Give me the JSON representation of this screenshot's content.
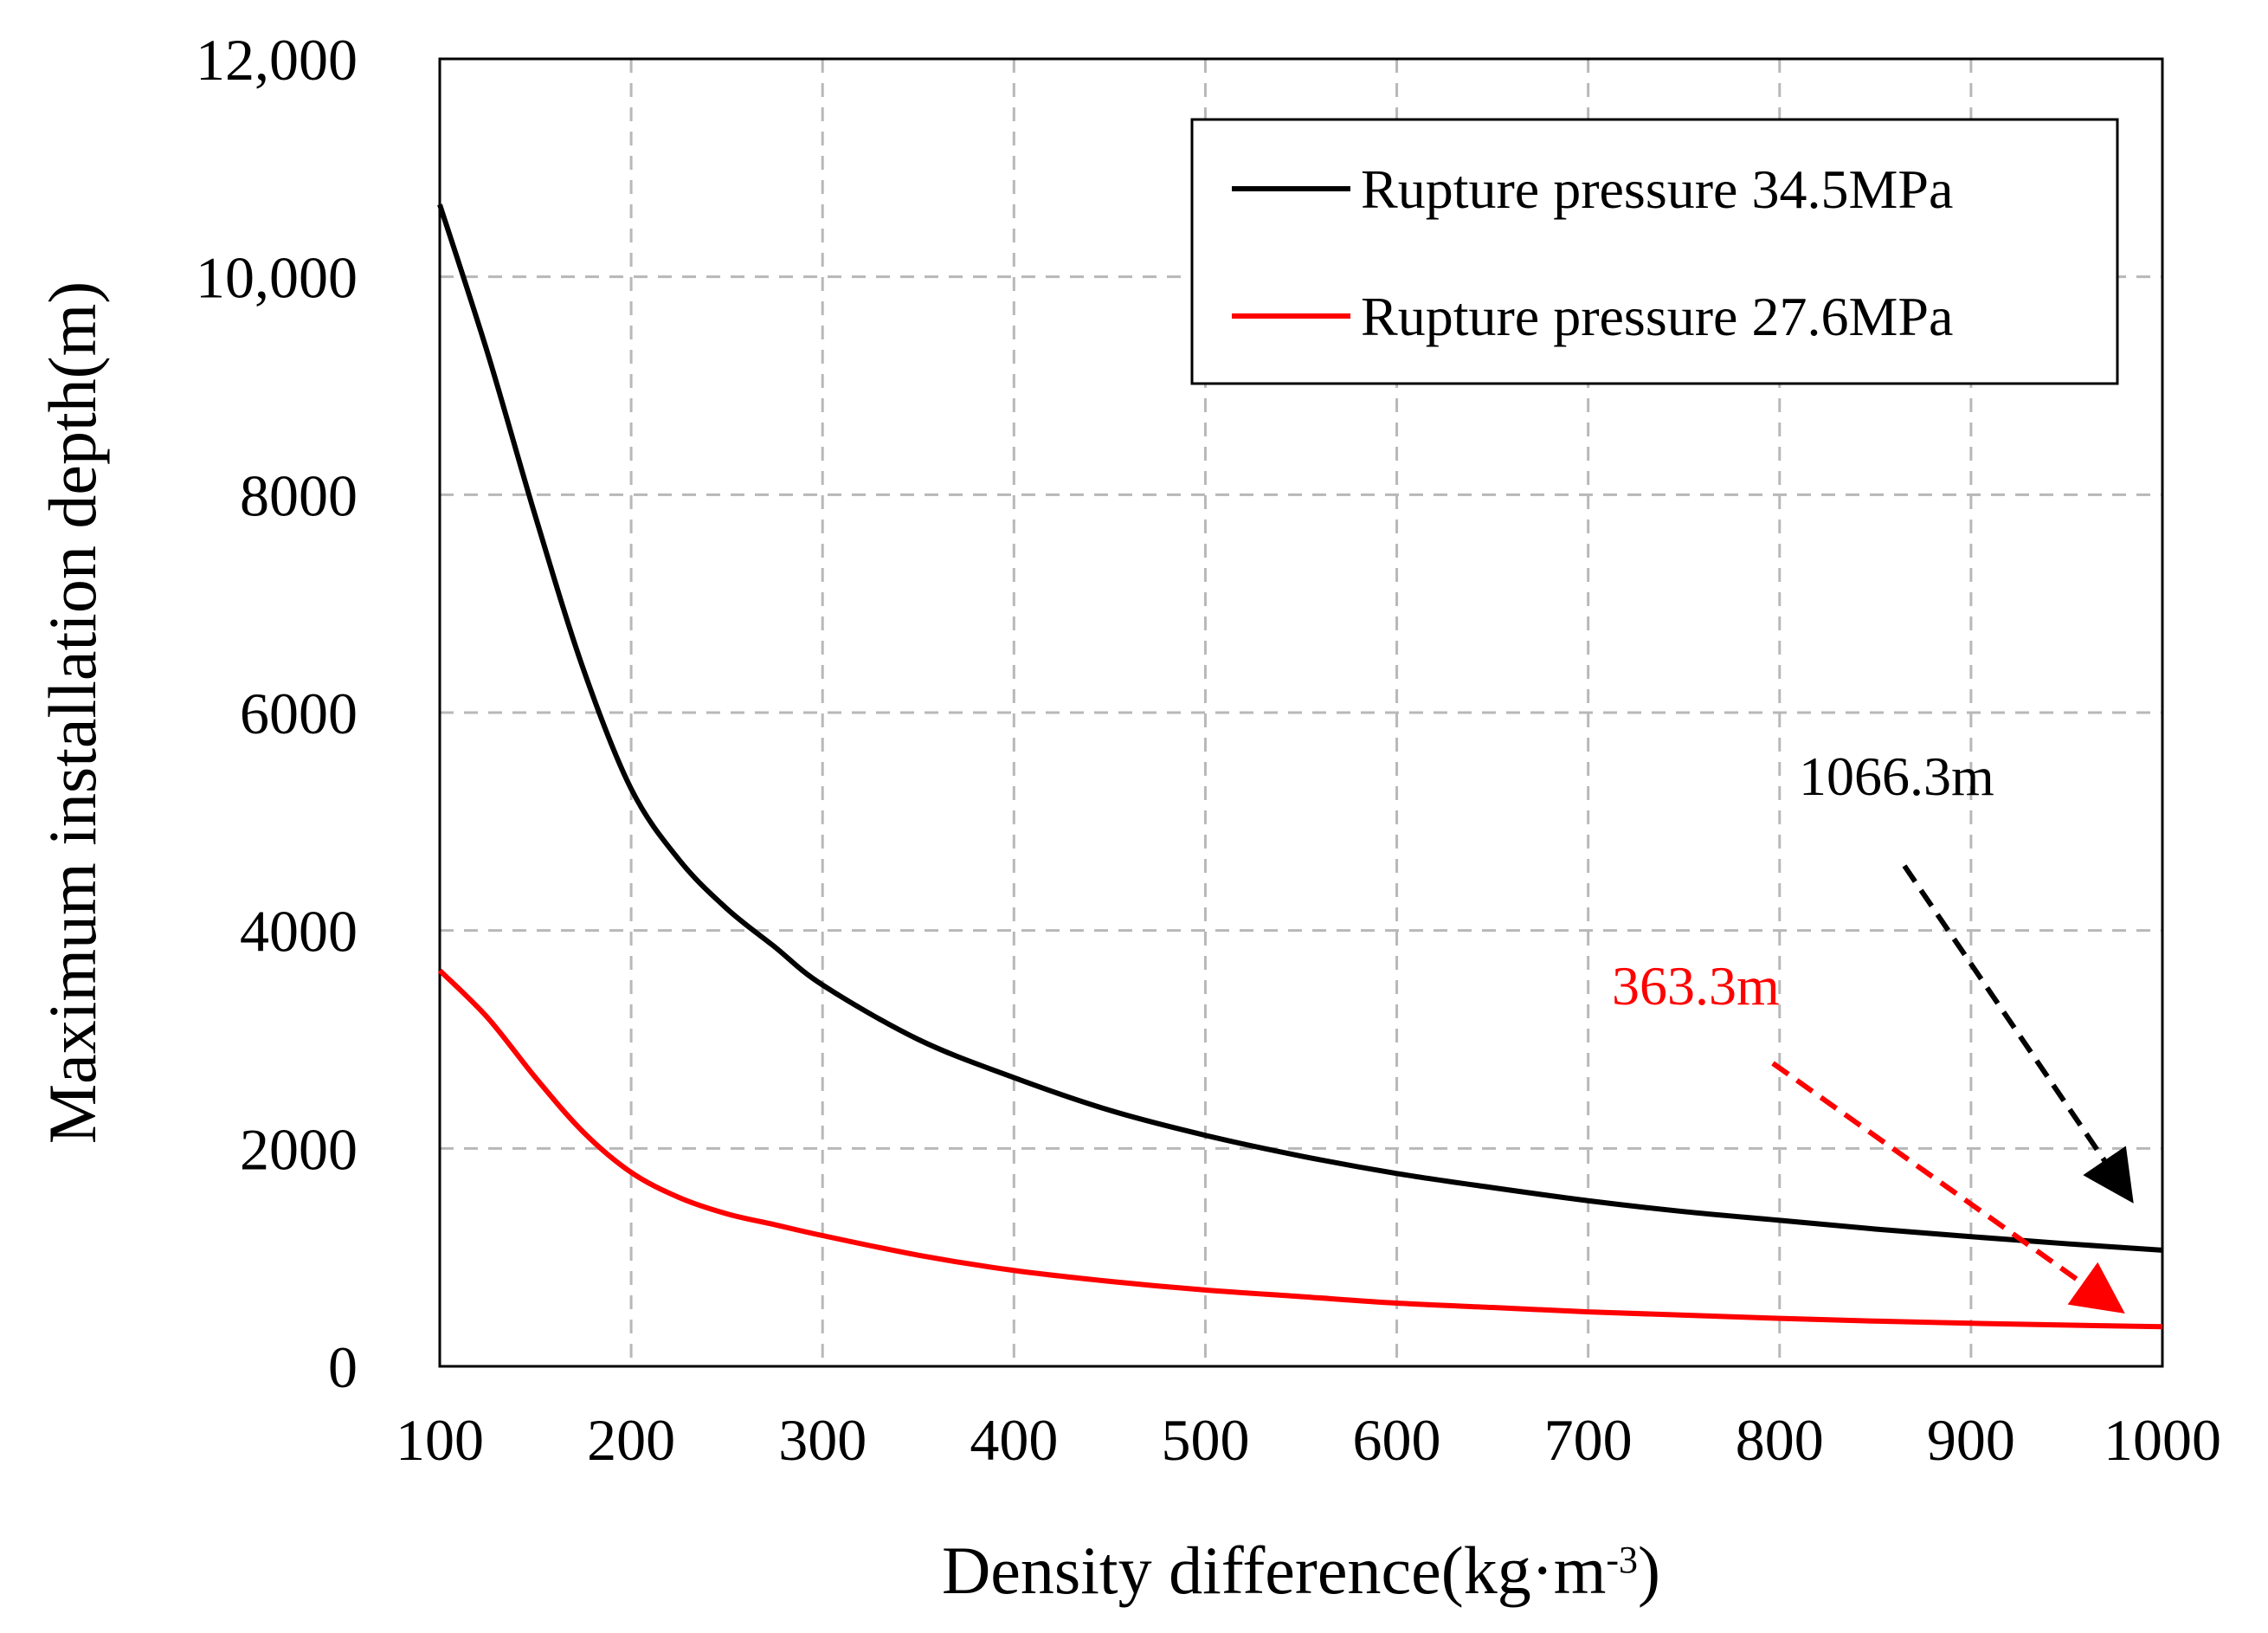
{
  "chart_data": {
    "type": "line",
    "title": "",
    "xlabel": "Density difference(kg·m",
    "xlabel_sup": "-3",
    "xlabel_close": ")",
    "ylabel": "Maximum installation depth(m)",
    "xlim": [
      100,
      1000
    ],
    "ylim": [
      0,
      12000
    ],
    "x_ticks": [
      100,
      200,
      300,
      400,
      500,
      600,
      700,
      800,
      900,
      1000
    ],
    "x_tick_labels": [
      "100",
      "200",
      "300",
      "400",
      "500",
      "600",
      "700",
      "800",
      "900",
      "1000"
    ],
    "y_ticks": [
      0,
      2000,
      4000,
      6000,
      8000,
      10000,
      12000
    ],
    "y_tick_labels": [
      "0",
      "2000",
      "4000",
      "6000",
      "8000",
      "10,000",
      "12,000"
    ],
    "grid": true,
    "legend_position": "top-right",
    "x": [
      100,
      125,
      150,
      175,
      200,
      225,
      250,
      275,
      300,
      350,
      400,
      450,
      500,
      550,
      600,
      650,
      700,
      750,
      800,
      850,
      900,
      950,
      1000
    ],
    "series": [
      {
        "name": "Rupture pressure 34.5MPa",
        "color": "#000000",
        "values": [
          10663,
          9300,
          7800,
          6400,
          5300,
          4650,
          4200,
          3850,
          3500,
          3000,
          2650,
          2350,
          2120,
          1930,
          1770,
          1640,
          1520,
          1420,
          1340,
          1260,
          1190,
          1125,
          1066.3
        ]
      },
      {
        "name": "Rupture pressure 27.6MPa",
        "color": "#ff0000",
        "values": [
          3633,
          3200,
          2650,
          2150,
          1780,
          1550,
          1400,
          1300,
          1200,
          1020,
          880,
          780,
          700,
          640,
          580,
          540,
          500,
          470,
          440,
          415,
          395,
          378,
          363.3
        ]
      }
    ],
    "annotations": [
      {
        "text": "1066.3m",
        "color": "#000000",
        "x": 1000,
        "y": 1066.3
      },
      {
        "text": "363.3m",
        "color": "#ff0000",
        "x": 1000,
        "y": 363.3
      }
    ]
  }
}
